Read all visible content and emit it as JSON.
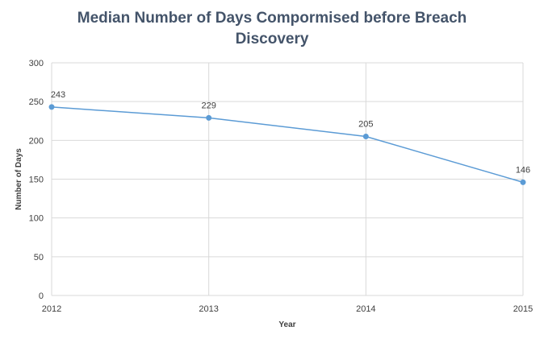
{
  "chart_data": {
    "type": "line",
    "title": "Median Number of Days Compormised  before Breach\nDiscovery",
    "xlabel": "Year",
    "ylabel": "Number of Days",
    "x": [
      "2012",
      "2013",
      "2014",
      "2015"
    ],
    "series": [
      {
        "values": [
          243,
          229,
          205,
          146
        ],
        "color": "#5b9bd5"
      }
    ],
    "ylim": [
      0,
      300
    ],
    "yticks": [
      0,
      50,
      100,
      150,
      200,
      250,
      300
    ],
    "grid": true,
    "data_labels": [
      "243",
      "229",
      "205",
      "146"
    ]
  }
}
